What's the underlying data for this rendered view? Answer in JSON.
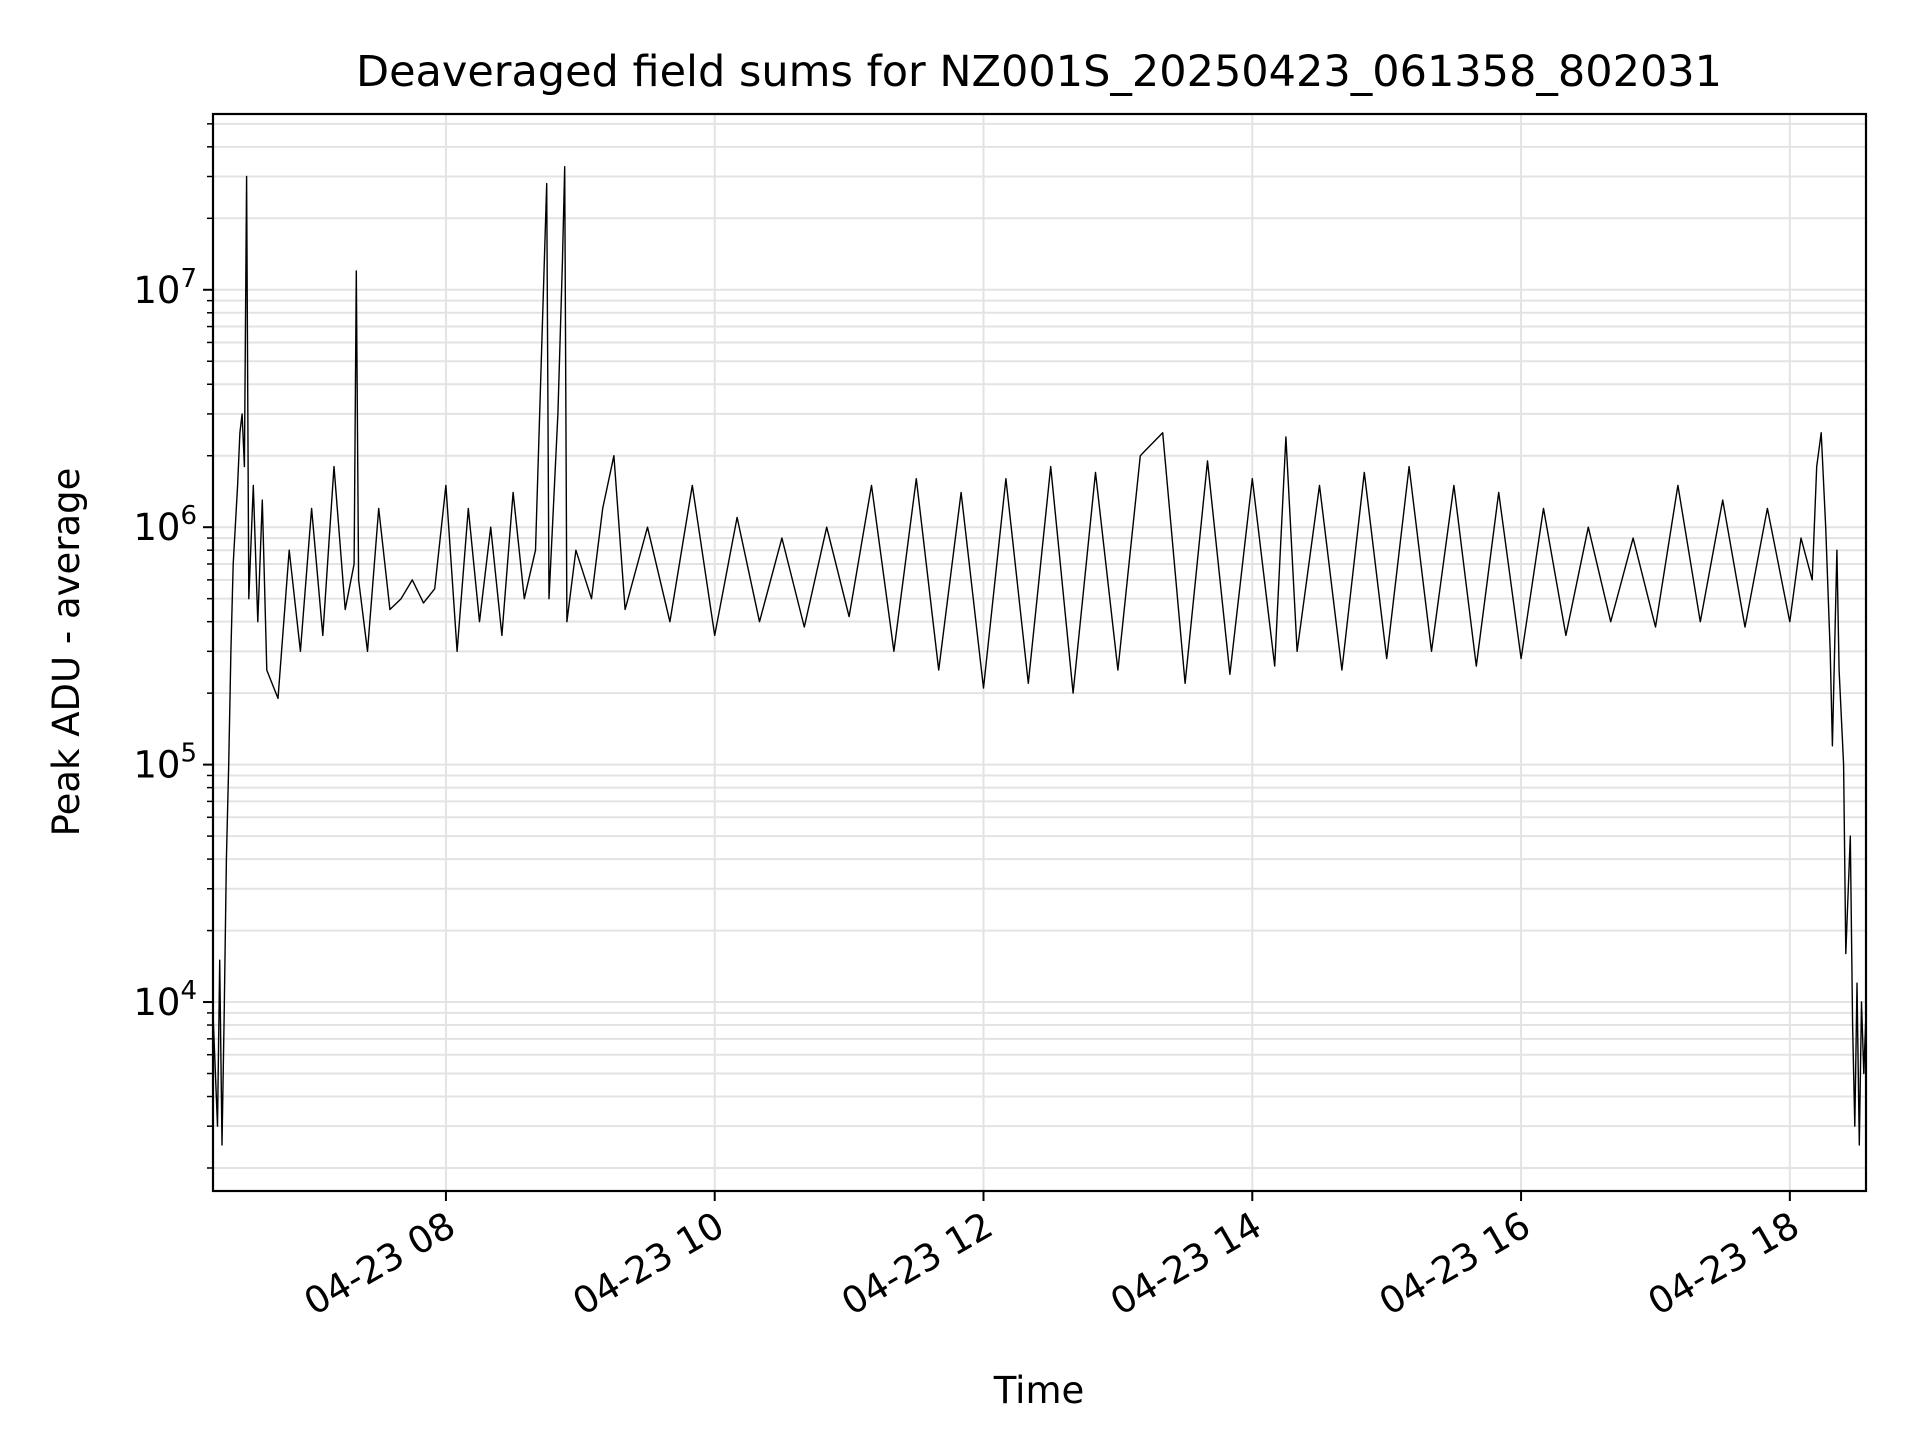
{
  "chart_data": {
    "type": "line",
    "title": "Deaveraged field sums for NZ001S_20250423_061358_802031",
    "xlabel": "Time",
    "ylabel": "Peak ADU - average",
    "yscale": "log",
    "grid": true,
    "legend": "none",
    "xlim": [
      "04-23 06:16",
      "04-23 18:34"
    ],
    "ylim": [
      1600,
      55000000
    ],
    "x_ticks": [
      "04-23 08",
      "04-23 10",
      "04-23 12",
      "04-23 14",
      "04-23 16",
      "04-23 18"
    ],
    "y_ticks": [
      {
        "base": "10",
        "exp": "4",
        "value": 10000
      },
      {
        "base": "10",
        "exp": "5",
        "value": 100000
      },
      {
        "base": "10",
        "exp": "6",
        "value": 1000000
      },
      {
        "base": "10",
        "exp": "7",
        "value": 10000000
      }
    ],
    "series_color": "#000000",
    "series": [
      {
        "points": [
          [
            "04-23 06:16",
            9000
          ],
          [
            "04-23 06:18",
            3000
          ],
          [
            "04-23 06:19",
            15000
          ],
          [
            "04-23 06:20",
            2500
          ],
          [
            "04-23 06:21",
            9000
          ],
          [
            "04-23 06:22",
            40000
          ],
          [
            "04-23 06:23",
            100000
          ],
          [
            "04-23 06:24",
            300000
          ],
          [
            "04-23 06:25",
            700000
          ],
          [
            "04-23 06:27",
            1500000
          ],
          [
            "04-23 06:28",
            2500000
          ],
          [
            "04-23 06:29",
            3000000
          ],
          [
            "04-23 06:30",
            1800000
          ],
          [
            "04-23 06:31",
            30000000
          ],
          [
            "04-23 06:32",
            500000
          ],
          [
            "04-23 06:34",
            1500000
          ],
          [
            "04-23 06:36",
            400000
          ],
          [
            "04-23 06:38",
            1300000
          ],
          [
            "04-23 06:40",
            250000
          ],
          [
            "04-23 06:45",
            190000
          ],
          [
            "04-23 06:50",
            800000
          ],
          [
            "04-23 06:55",
            300000
          ],
          [
            "04-23 07:00",
            1200000
          ],
          [
            "04-23 07:05",
            350000
          ],
          [
            "04-23 07:10",
            1800000
          ],
          [
            "04-23 07:15",
            450000
          ],
          [
            "04-23 07:19",
            700000
          ],
          [
            "04-23 07:20",
            12000000
          ],
          [
            "04-23 07:21",
            600000
          ],
          [
            "04-23 07:25",
            300000
          ],
          [
            "04-23 07:30",
            1200000
          ],
          [
            "04-23 07:35",
            450000
          ],
          [
            "04-23 07:40",
            500000
          ],
          [
            "04-23 07:45",
            600000
          ],
          [
            "04-23 07:50",
            480000
          ],
          [
            "04-23 07:55",
            550000
          ],
          [
            "04-23 08:00",
            1500000
          ],
          [
            "04-23 08:05",
            300000
          ],
          [
            "04-23 08:10",
            1200000
          ],
          [
            "04-23 08:15",
            400000
          ],
          [
            "04-23 08:20",
            1000000
          ],
          [
            "04-23 08:25",
            350000
          ],
          [
            "04-23 08:30",
            1400000
          ],
          [
            "04-23 08:35",
            500000
          ],
          [
            "04-23 08:40",
            800000
          ],
          [
            "04-23 08:45",
            28000000
          ],
          [
            "04-23 08:46",
            500000
          ],
          [
            "04-23 08:50",
            3000000
          ],
          [
            "04-23 08:52",
            13000000
          ],
          [
            "04-23 08:53",
            33000000
          ],
          [
            "04-23 08:54",
            400000
          ],
          [
            "04-23 08:58",
            800000
          ],
          [
            "04-23 09:05",
            500000
          ],
          [
            "04-23 09:10",
            1200000
          ],
          [
            "04-23 09:15",
            2000000
          ],
          [
            "04-23 09:20",
            450000
          ],
          [
            "04-23 09:30",
            1000000
          ],
          [
            "04-23 09:40",
            400000
          ],
          [
            "04-23 09:50",
            1500000
          ],
          [
            "04-23 10:00",
            350000
          ],
          [
            "04-23 10:10",
            1100000
          ],
          [
            "04-23 10:20",
            400000
          ],
          [
            "04-23 10:30",
            900000
          ],
          [
            "04-23 10:40",
            380000
          ],
          [
            "04-23 10:50",
            1000000
          ],
          [
            "04-23 11:00",
            420000
          ],
          [
            "04-23 11:10",
            1500000
          ],
          [
            "04-23 11:20",
            300000
          ],
          [
            "04-23 11:30",
            1600000
          ],
          [
            "04-23 11:40",
            250000
          ],
          [
            "04-23 11:50",
            1400000
          ],
          [
            "04-23 12:00",
            210000
          ],
          [
            "04-23 12:10",
            1600000
          ],
          [
            "04-23 12:20",
            220000
          ],
          [
            "04-23 12:30",
            1800000
          ],
          [
            "04-23 12:40",
            200000
          ],
          [
            "04-23 12:50",
            1700000
          ],
          [
            "04-23 13:00",
            250000
          ],
          [
            "04-23 13:10",
            2000000
          ],
          [
            "04-23 13:20",
            2500000
          ],
          [
            "04-23 13:30",
            220000
          ],
          [
            "04-23 13:40",
            1900000
          ],
          [
            "04-23 13:50",
            240000
          ],
          [
            "04-23 14:00",
            1600000
          ],
          [
            "04-23 14:10",
            260000
          ],
          [
            "04-23 14:15",
            2400000
          ],
          [
            "04-23 14:20",
            300000
          ],
          [
            "04-23 14:30",
            1500000
          ],
          [
            "04-23 14:40",
            250000
          ],
          [
            "04-23 14:50",
            1700000
          ],
          [
            "04-23 15:00",
            280000
          ],
          [
            "04-23 15:10",
            1800000
          ],
          [
            "04-23 15:20",
            300000
          ],
          [
            "04-23 15:30",
            1500000
          ],
          [
            "04-23 15:40",
            260000
          ],
          [
            "04-23 15:50",
            1400000
          ],
          [
            "04-23 16:00",
            280000
          ],
          [
            "04-23 16:10",
            1200000
          ],
          [
            "04-23 16:20",
            350000
          ],
          [
            "04-23 16:30",
            1000000
          ],
          [
            "04-23 16:40",
            400000
          ],
          [
            "04-23 16:50",
            900000
          ],
          [
            "04-23 17:00",
            380000
          ],
          [
            "04-23 17:10",
            1500000
          ],
          [
            "04-23 17:20",
            400000
          ],
          [
            "04-23 17:30",
            1300000
          ],
          [
            "04-23 17:40",
            380000
          ],
          [
            "04-23 17:50",
            1200000
          ],
          [
            "04-23 18:00",
            400000
          ],
          [
            "04-23 18:05",
            900000
          ],
          [
            "04-23 18:10",
            600000
          ],
          [
            "04-23 18:12",
            1800000
          ],
          [
            "04-23 18:14",
            2500000
          ],
          [
            "04-23 18:16",
            1000000
          ],
          [
            "04-23 18:18",
            300000
          ],
          [
            "04-23 18:19",
            120000
          ],
          [
            "04-23 18:21",
            800000
          ],
          [
            "04-23 18:22",
            250000
          ],
          [
            "04-23 18:24",
            100000
          ],
          [
            "04-23 18:25",
            16000
          ],
          [
            "04-23 18:27",
            50000
          ],
          [
            "04-23 18:28",
            8000
          ],
          [
            "04-23 18:29",
            3000
          ],
          [
            "04-23 18:30",
            12000
          ],
          [
            "04-23 18:31",
            2500
          ],
          [
            "04-23 18:32",
            10000
          ],
          [
            "04-23 18:33",
            5000
          ],
          [
            "04-23 18:34",
            9000
          ]
        ]
      }
    ]
  }
}
